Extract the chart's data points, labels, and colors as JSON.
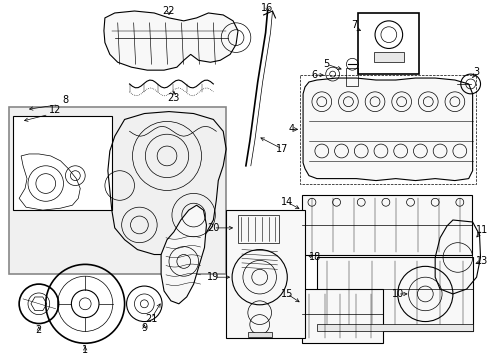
{
  "background_color": "#ffffff",
  "line_color": "#000000",
  "gray_color": "#888888",
  "light_gray": "#f0f0f0",
  "fig_width": 4.89,
  "fig_height": 3.6,
  "dpi": 100
}
